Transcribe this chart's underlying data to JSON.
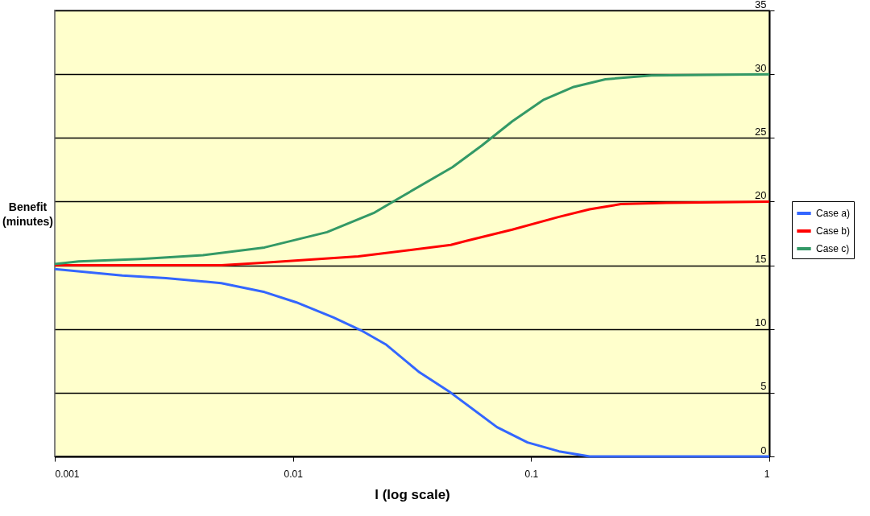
{
  "chart_data": {
    "type": "line",
    "xlabel": "l (log scale)",
    "ylabel": "Benefit (minutes)",
    "log": "x",
    "xlim": [
      0.001,
      1
    ],
    "xticks": [
      0.001,
      0.01,
      0.1,
      1
    ],
    "ylim": [
      0,
      35
    ],
    "yticks": [
      0,
      5,
      10,
      15,
      20,
      25,
      30,
      35
    ],
    "grid": "y",
    "legend": "right",
    "series": [
      {
        "name": "Case a)",
        "color": "#3366ff",
        "x": [
          0.001,
          0.00192,
          0.00293,
          0.005,
          0.0076,
          0.0103,
          0.0148,
          0.0193,
          0.0245,
          0.034,
          0.046,
          0.0719,
          0.0966,
          0.131,
          0.176,
          0.3,
          1
        ],
        "values": [
          14.7,
          14.2,
          14.0,
          13.6,
          12.9,
          12.1,
          10.9,
          9.9,
          8.8,
          6.6,
          5.0,
          2.3,
          1.1,
          0.4,
          0,
          0,
          0
        ]
      },
      {
        "name": "Case b)",
        "color": "#ff0000",
        "x": [
          0.001,
          0.003,
          0.005,
          0.0074,
          0.0188,
          0.046,
          0.053,
          0.0833,
          0.131,
          0.176,
          0.238,
          0.37,
          1
        ],
        "values": [
          15.0,
          15.0,
          15.0,
          15.2,
          15.7,
          16.6,
          16.9,
          17.8,
          18.8,
          19.4,
          19.8,
          19.9,
          20.0
        ]
      },
      {
        "name": "Case c)",
        "color": "#339966",
        "x": [
          0.001,
          0.00126,
          0.00229,
          0.00419,
          0.0076,
          0.0139,
          0.0218,
          0.0293,
          0.0467,
          0.0621,
          0.0833,
          0.113,
          0.151,
          0.205,
          0.32,
          1
        ],
        "values": [
          15.1,
          15.3,
          15.5,
          15.8,
          16.4,
          17.6,
          19.1,
          20.5,
          22.7,
          24.4,
          26.3,
          28.0,
          29.0,
          29.6,
          29.9,
          30.0
        ]
      }
    ]
  }
}
